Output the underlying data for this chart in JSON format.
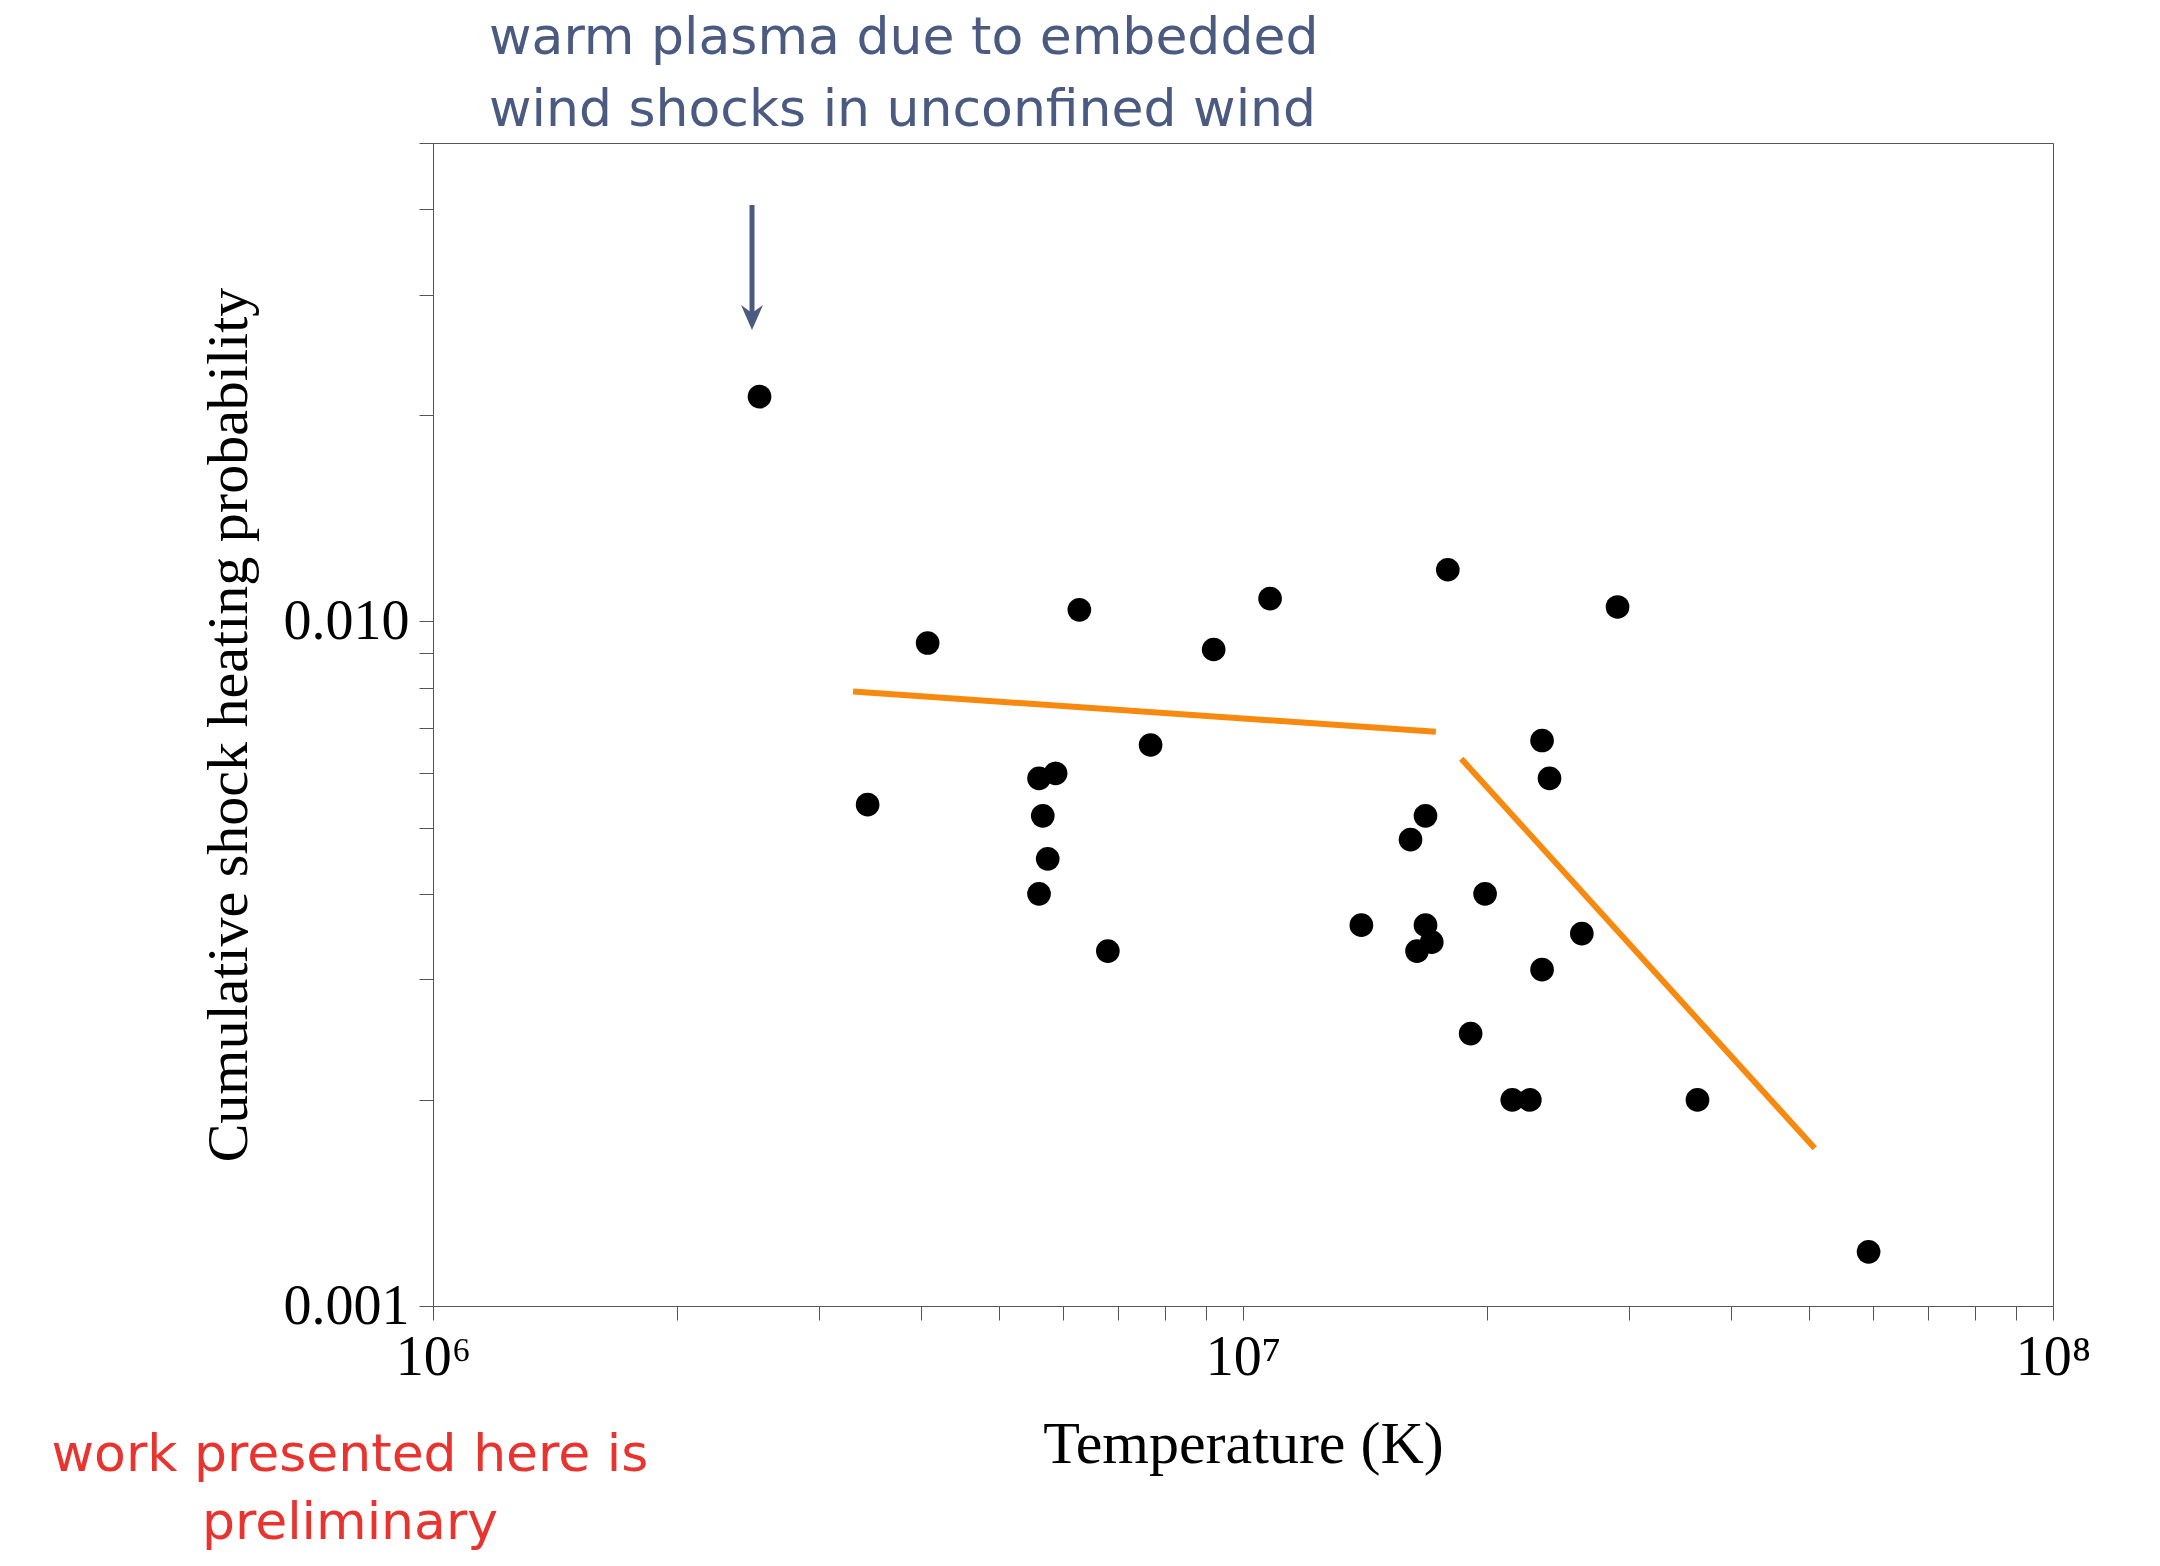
{
  "chart_data": {
    "type": "scatter",
    "xlabel": "Temperature (K)",
    "ylabel": "Cumulative shock heating probability",
    "log": "xy",
    "grid": false,
    "xlim": [
      1000000,
      100000000
    ],
    "ylim": [
      0.001,
      0.05
    ],
    "xticks": [
      {
        "value": 1000000,
        "label": "10⁶"
      },
      {
        "value": 2000000,
        "label": null
      },
      {
        "value": 3000000,
        "label": null
      },
      {
        "value": 4000000,
        "label": null
      },
      {
        "value": 5000000,
        "label": null
      },
      {
        "value": 6000000,
        "label": null
      },
      {
        "value": 7000000,
        "label": null
      },
      {
        "value": 8000000,
        "label": null
      },
      {
        "value": 9000000,
        "label": null
      },
      {
        "value": 10000000,
        "label": "10⁷"
      },
      {
        "value": 20000000,
        "label": null
      },
      {
        "value": 30000000,
        "label": null
      },
      {
        "value": 40000000,
        "label": null
      },
      {
        "value": 50000000,
        "label": null
      },
      {
        "value": 60000000,
        "label": null
      },
      {
        "value": 70000000,
        "label": null
      },
      {
        "value": 80000000,
        "label": null
      },
      {
        "value": 90000000,
        "label": null
      },
      {
        "value": 100000000,
        "label": "10⁸"
      }
    ],
    "yticks": [
      {
        "value": 0.001,
        "label": "0.001"
      },
      {
        "value": 0.002,
        "label": null
      },
      {
        "value": 0.003,
        "label": null
      },
      {
        "value": 0.004,
        "label": null
      },
      {
        "value": 0.005,
        "label": null
      },
      {
        "value": 0.006,
        "label": null
      },
      {
        "value": 0.007,
        "label": null
      },
      {
        "value": 0.008,
        "label": null
      },
      {
        "value": 0.009,
        "label": null
      },
      {
        "value": 0.01,
        "label": "0.010"
      },
      {
        "value": 0.02,
        "label": null
      },
      {
        "value": 0.03,
        "label": null
      },
      {
        "value": 0.04,
        "label": null
      },
      {
        "value": 0.05,
        "label": null
      }
    ],
    "series": [
      {
        "marker": "circle",
        "color": "#000000",
        "x": [
          2530000,
          3440000,
          4080000,
          6280000,
          5600000,
          5870000,
          5660000,
          5740000,
          5600000,
          6810000,
          7690000,
          9200000,
          10800000,
          17900000,
          29000000,
          14000000,
          16100000,
          16800000,
          16800000,
          16400000,
          17100000,
          19900000,
          23400000,
          23900000,
          23400000,
          26200000,
          19100000,
          21500000,
          22600000,
          36400000,
          59200000
        ],
        "values": [
          0.0213,
          0.0054,
          0.0093,
          0.0104,
          0.0059,
          0.006,
          0.0052,
          0.0045,
          0.004,
          0.0033,
          0.0066,
          0.0091,
          0.0108,
          0.0119,
          0.0105,
          0.0036,
          0.0048,
          0.0052,
          0.0036,
          0.0033,
          0.0034,
          0.004,
          0.0067,
          0.0059,
          0.0031,
          0.0035,
          0.0025,
          0.002,
          0.002,
          0.002,
          0.0012
        ]
      },
      {
        "type": "line",
        "color": "#f7890f",
        "x": [
          3300000,
          17300000
        ],
        "values": [
          0.0079,
          0.0069
        ]
      },
      {
        "type": "line",
        "color": "#f7890f",
        "x": [
          18600000,
          50800000
        ],
        "values": [
          0.0063,
          0.0017
        ]
      }
    ],
    "annotations": [
      "warm plasma due to embedded wind shocks in unconfined wind",
      "work presented here is preliminary"
    ]
  }
}
